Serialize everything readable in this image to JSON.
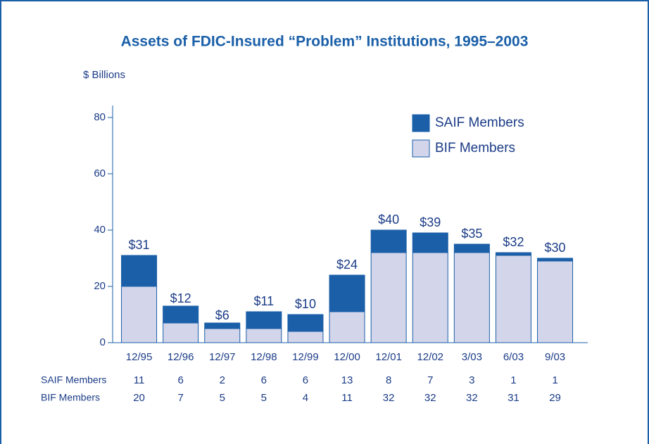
{
  "chart_data": {
    "type": "stacked_bar",
    "title": "Assets of FDIC-Insured “Problem” Institutions, 1995–2003",
    "y_label": "$ Billions",
    "categories": [
      "12/95",
      "12/96",
      "12/97",
      "12/98",
      "12/99",
      "12/00",
      "12/01",
      "12/02",
      "3/03",
      "6/03",
      "9/03"
    ],
    "series": [
      {
        "name": "SAIF Members",
        "color": "#1a5fa8",
        "values": [
          11,
          6,
          2,
          6,
          6,
          13,
          8,
          7,
          3,
          1,
          1
        ]
      },
      {
        "name": "BIF Members",
        "color": "#d3d5ea",
        "values": [
          20,
          7,
          5,
          5,
          4,
          11,
          32,
          32,
          32,
          31,
          29
        ]
      }
    ],
    "totals": {
      "values": [
        31,
        12,
        6,
        11,
        10,
        24,
        40,
        39,
        35,
        32,
        30
      ],
      "value_labels": [
        "$31",
        "$12",
        "$6",
        "$11",
        "$10",
        "$24",
        "$40",
        "$39",
        "$35",
        "$32",
        "$30"
      ]
    },
    "ylim": [
      0,
      80
    ],
    "yticks": [
      0,
      20,
      40,
      60,
      80
    ]
  }
}
